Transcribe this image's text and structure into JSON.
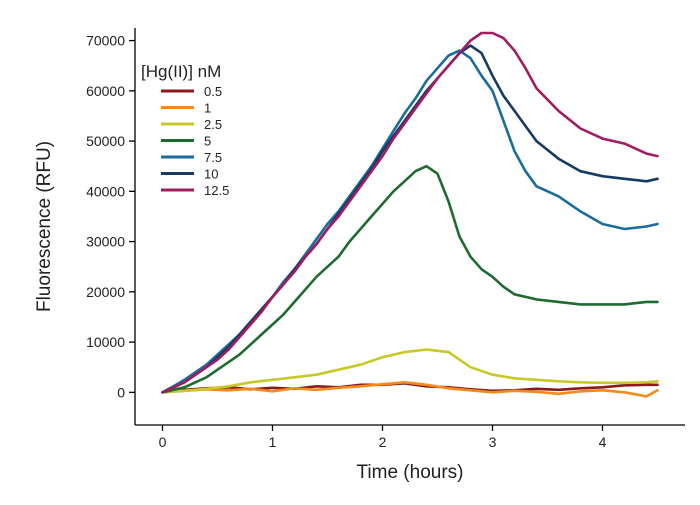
{
  "chart_data": {
    "type": "line",
    "xlabel": "Time (hours)",
    "ylabel": "Fluorescence (RFU)",
    "xlim": [
      -0.25,
      4.75
    ],
    "ylim": [
      -6500,
      72500
    ],
    "x_ticks": [
      0,
      1,
      2,
      3,
      4
    ],
    "y_ticks": [
      0,
      10000,
      20000,
      30000,
      40000,
      50000,
      60000,
      70000
    ],
    "grid": false,
    "legend": {
      "title": "[Hg(II)] nM",
      "position": "top-left"
    },
    "series": [
      {
        "name": "0.5",
        "color": "#8B1A1A",
        "x": [
          0,
          0.2,
          0.4,
          0.6,
          0.8,
          1.0,
          1.2,
          1.4,
          1.6,
          1.8,
          2.0,
          2.2,
          2.4,
          2.6,
          2.8,
          3.0,
          3.2,
          3.4,
          3.6,
          3.8,
          4.0,
          4.2,
          4.4,
          4.5
        ],
        "y": [
          0,
          500,
          800,
          1000,
          600,
          900,
          700,
          1200,
          1000,
          1500,
          1500,
          1800,
          1200,
          1000,
          600,
          300,
          400,
          700,
          500,
          800,
          1000,
          1400,
          1500,
          1500
        ]
      },
      {
        "name": "1",
        "color": "#F28A1E",
        "x": [
          0,
          0.2,
          0.4,
          0.6,
          0.8,
          1.0,
          1.2,
          1.4,
          1.6,
          1.8,
          2.0,
          2.2,
          2.4,
          2.6,
          2.8,
          3.0,
          3.2,
          3.4,
          3.6,
          3.8,
          4.0,
          4.2,
          4.4,
          4.5
        ],
        "y": [
          0,
          300,
          600,
          400,
          700,
          200,
          800,
          500,
          900,
          1200,
          1600,
          2000,
          1500,
          800,
          400,
          0,
          300,
          100,
          -300,
          200,
          400,
          0,
          -800,
          400
        ]
      },
      {
        "name": "2.5",
        "color": "#C8C828",
        "x": [
          0,
          0.2,
          0.4,
          0.6,
          0.8,
          1.0,
          1.2,
          1.4,
          1.6,
          1.8,
          2.0,
          2.2,
          2.4,
          2.6,
          2.8,
          3.0,
          3.2,
          3.4,
          3.6,
          3.8,
          4.0,
          4.2,
          4.4,
          4.5
        ],
        "y": [
          0,
          300,
          700,
          1200,
          2000,
          2500,
          3000,
          3500,
          4500,
          5500,
          7000,
          8000,
          8500,
          8000,
          5000,
          3500,
          2800,
          2500,
          2200,
          2000,
          1900,
          1900,
          2000,
          2200
        ]
      },
      {
        "name": "5",
        "color": "#1E6B30",
        "x": [
          0,
          0.1,
          0.2,
          0.3,
          0.4,
          0.5,
          0.6,
          0.7,
          0.8,
          0.9,
          1.0,
          1.1,
          1.2,
          1.3,
          1.4,
          1.5,
          1.6,
          1.7,
          1.8,
          1.9,
          2.0,
          2.1,
          2.2,
          2.3,
          2.4,
          2.5,
          2.6,
          2.7,
          2.8,
          2.9,
          3.0,
          3.1,
          3.2,
          3.4,
          3.6,
          3.8,
          4.0,
          4.2,
          4.4,
          4.5
        ],
        "y": [
          0,
          500,
          1000,
          2000,
          3000,
          4500,
          6000,
          7500,
          9500,
          11500,
          13500,
          15500,
          18000,
          20500,
          23000,
          25000,
          27000,
          30000,
          32500,
          35000,
          37500,
          40000,
          42000,
          44000,
          45000,
          43500,
          38000,
          31000,
          27000,
          24500,
          23000,
          21000,
          19500,
          18500,
          18000,
          17500,
          17500,
          17500,
          18000,
          18000
        ]
      },
      {
        "name": "7.5",
        "color": "#1B6C9E",
        "x": [
          0,
          0.1,
          0.2,
          0.3,
          0.4,
          0.5,
          0.6,
          0.7,
          0.8,
          0.9,
          1.0,
          1.1,
          1.2,
          1.3,
          1.4,
          1.5,
          1.6,
          1.7,
          1.8,
          1.9,
          2.0,
          2.1,
          2.2,
          2.3,
          2.4,
          2.5,
          2.6,
          2.7,
          2.8,
          2.9,
          3.0,
          3.1,
          3.2,
          3.3,
          3.4,
          3.6,
          3.8,
          4.0,
          4.2,
          4.4,
          4.5
        ],
        "y": [
          0,
          1200,
          2500,
          4000,
          5500,
          7500,
          9500,
          11500,
          14000,
          16500,
          19000,
          22000,
          24500,
          27500,
          30500,
          33500,
          36000,
          39000,
          42000,
          45000,
          48500,
          52000,
          55500,
          58500,
          62000,
          64500,
          67000,
          68000,
          66500,
          63000,
          60000,
          54000,
          48000,
          44000,
          41000,
          39000,
          36000,
          33500,
          32500,
          33000,
          33500
        ]
      },
      {
        "name": "10",
        "color": "#163A63",
        "x": [
          0,
          0.1,
          0.2,
          0.3,
          0.4,
          0.5,
          0.6,
          0.7,
          0.8,
          0.9,
          1.0,
          1.1,
          1.2,
          1.3,
          1.4,
          1.5,
          1.6,
          1.7,
          1.8,
          1.9,
          2.0,
          2.1,
          2.2,
          2.3,
          2.4,
          2.5,
          2.6,
          2.7,
          2.8,
          2.9,
          3.0,
          3.1,
          3.2,
          3.3,
          3.4,
          3.6,
          3.8,
          4.0,
          4.2,
          4.4,
          4.5
        ],
        "y": [
          0,
          1000,
          2000,
          3500,
          5000,
          7000,
          9000,
          11500,
          14000,
          16500,
          19000,
          21500,
          24500,
          27000,
          29500,
          32500,
          35500,
          38500,
          41500,
          44500,
          48000,
          51000,
          54000,
          57000,
          60000,
          62500,
          65000,
          67500,
          69000,
          67500,
          63000,
          59000,
          56000,
          53000,
          50000,
          46500,
          44000,
          43000,
          42500,
          42000,
          42500
        ]
      },
      {
        "name": "12.5",
        "color": "#A01C62",
        "x": [
          0,
          0.1,
          0.2,
          0.3,
          0.4,
          0.5,
          0.6,
          0.7,
          0.8,
          0.9,
          1.0,
          1.1,
          1.2,
          1.3,
          1.4,
          1.5,
          1.6,
          1.7,
          1.8,
          1.9,
          2.0,
          2.1,
          2.2,
          2.3,
          2.4,
          2.5,
          2.6,
          2.7,
          2.8,
          2.9,
          3.0,
          3.1,
          3.2,
          3.3,
          3.4,
          3.6,
          3.8,
          4.0,
          4.2,
          4.4,
          4.5
        ],
        "y": [
          0,
          1000,
          2000,
          3500,
          5000,
          6500,
          8500,
          11000,
          13500,
          16000,
          19000,
          21500,
          24000,
          27000,
          29500,
          32500,
          35000,
          38000,
          41000,
          44000,
          47000,
          50500,
          53500,
          56500,
          59500,
          62500,
          65000,
          67500,
          70000,
          71500,
          71500,
          70500,
          68000,
          64500,
          60500,
          56000,
          52500,
          50500,
          49500,
          47500,
          47000
        ]
      }
    ]
  }
}
